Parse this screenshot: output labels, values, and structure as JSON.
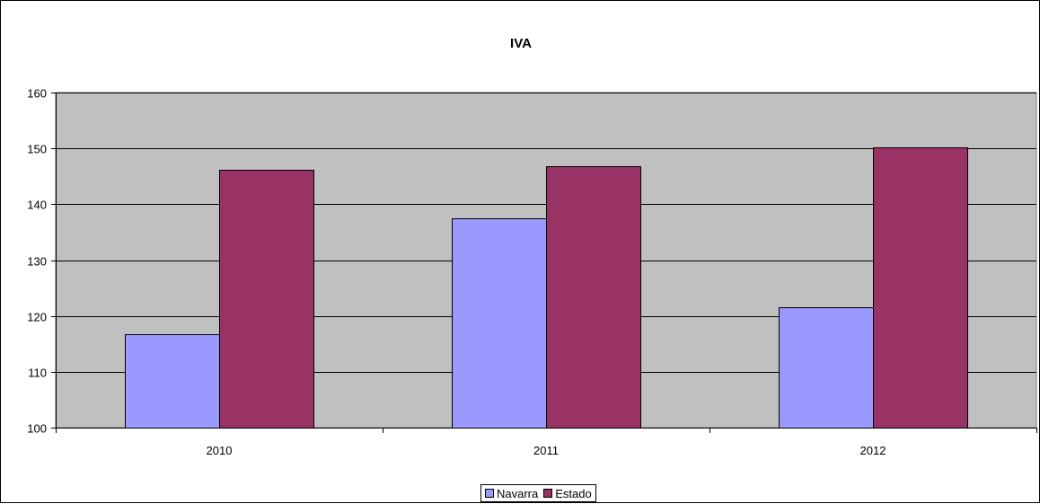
{
  "chart_data": {
    "type": "bar",
    "title": "IVA",
    "categories": [
      "2010",
      "2011",
      "2012"
    ],
    "series": [
      {
        "name": "Navarra",
        "values": [
          116.8,
          137.5,
          121.5
        ],
        "color": "#9999ff"
      },
      {
        "name": "Estado",
        "values": [
          146.1,
          146.8,
          150.2
        ],
        "color": "#993366"
      }
    ],
    "ylim": [
      100,
      160
    ],
    "yticks": [
      100,
      110,
      120,
      130,
      140,
      150,
      160
    ],
    "plot_background": "#c0c0c0",
    "grid": true,
    "legend_position": "bottom"
  }
}
